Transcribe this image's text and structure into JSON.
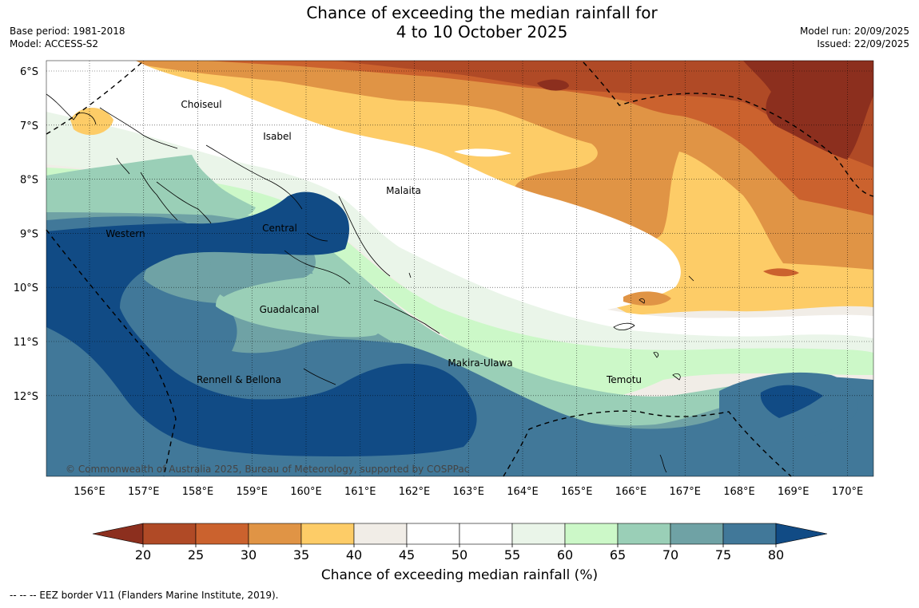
{
  "title": {
    "line1": "Chance of exceeding the median rainfall for",
    "line2": "4 to 10 October 2025"
  },
  "meta": {
    "base_period": "Base period: 1981-2018",
    "model": "Model: ACCESS-S2",
    "model_run": "Model run: 20/09/2025",
    "issued": "Issued: 22/09/2025"
  },
  "map": {
    "lat_labels": [
      "6°S",
      "7°S",
      "8°S",
      "9°S",
      "10°S",
      "11°S",
      "12°S"
    ],
    "lon_labels": [
      "156°E",
      "157°E",
      "158°E",
      "159°E",
      "160°E",
      "161°E",
      "162°E",
      "163°E",
      "164°E",
      "165°E",
      "166°E",
      "167°E",
      "168°E",
      "169°E",
      "170°E"
    ],
    "places": [
      {
        "id": "choiseul",
        "label": "Choiseul"
      },
      {
        "id": "isabel",
        "label": "Isabel"
      },
      {
        "id": "malaita",
        "label": "Malaita"
      },
      {
        "id": "western",
        "label": "Western"
      },
      {
        "id": "central",
        "label": "Central"
      },
      {
        "id": "guadalcanal",
        "label": "Guadalcanal"
      },
      {
        "id": "makira",
        "label": "Makira-Ulawa"
      },
      {
        "id": "rennell",
        "label": "Rennell & Bellona"
      },
      {
        "id": "temotu",
        "label": "Temotu"
      }
    ],
    "copyright": "© Commonwealth of Australia 2025, Bureau of Meteorology, supported by COSPPac"
  },
  "colorbar": {
    "ticks": [
      "20",
      "25",
      "30",
      "35",
      "40",
      "45",
      "50",
      "55",
      "60",
      "65",
      "70",
      "75",
      "80"
    ],
    "colors": [
      "#8c2f1e",
      "#b04a26",
      "#cb622e",
      "#e09445",
      "#fdcc67",
      "#f1ede7",
      "#ffffff",
      "#ffffff",
      "#eaf5e9",
      "#ccf8c8",
      "#9acfb7",
      "#6fa2a5",
      "#417899",
      "#114b85"
    ],
    "label": "Chance of exceeding median rainfall (%)"
  },
  "footnote": "--  --  -- EEZ border V11 (Flanders Marine Institute, 2019)."
}
